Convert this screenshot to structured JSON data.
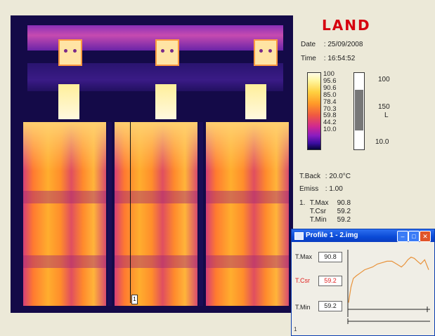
{
  "logo": "LAND",
  "date": {
    "label": "Date",
    "value": ": 25/09/2008"
  },
  "time": {
    "label": "Time",
    "value": ": 16:54:52"
  },
  "scale_labels": [
    "100",
    "95.6",
    "90.6",
    "85.0",
    "78.4",
    "70.3",
    "59.8",
    "44.2",
    "10.0"
  ],
  "span": {
    "top": "100",
    "mid": "150",
    "mid_unit": "L",
    "bottom": "10.0",
    "level_top_fraction": 0.22,
    "level_bottom_fraction": 0.75
  },
  "tback": {
    "label": "T.Back",
    "value": ": 20.0°C"
  },
  "emiss": {
    "label": "Emiss",
    "value": ": 1.00"
  },
  "readings": {
    "index": "1.",
    "rows": [
      {
        "name": "T.Max",
        "value": "90.8"
      },
      {
        "name": "T.Csr",
        "value": "59.2"
      },
      {
        "name": "T.Min",
        "value": "59.2"
      }
    ]
  },
  "image": {
    "marker_label": "1"
  },
  "profile_window": {
    "title": "Profile 1 - 2.img",
    "tmax": {
      "label": "T.Max",
      "value": "90.8"
    },
    "tcsr": {
      "label": "T.Csr",
      "value": "59.2"
    },
    "tmin": {
      "label": "T.Min",
      "value": "59.2"
    },
    "footer": "1",
    "colors": {
      "title_bar": "#0a4ad6",
      "curve": "#e8923a",
      "cursor": "#e02020"
    }
  },
  "chart_data": {
    "type": "line",
    "x": [
      0,
      3,
      6,
      10,
      15,
      20,
      25,
      30,
      36,
      42,
      48,
      54,
      60,
      66,
      70,
      74,
      78,
      82,
      86,
      90,
      95,
      100
    ],
    "y": [
      59.2,
      70,
      76,
      78,
      80,
      82,
      83,
      84,
      86,
      87,
      88,
      88,
      86,
      84,
      86,
      89,
      90.8,
      90,
      88,
      86,
      89,
      82
    ],
    "ylim": [
      55,
      95
    ],
    "xlim": [
      0,
      100
    ]
  }
}
